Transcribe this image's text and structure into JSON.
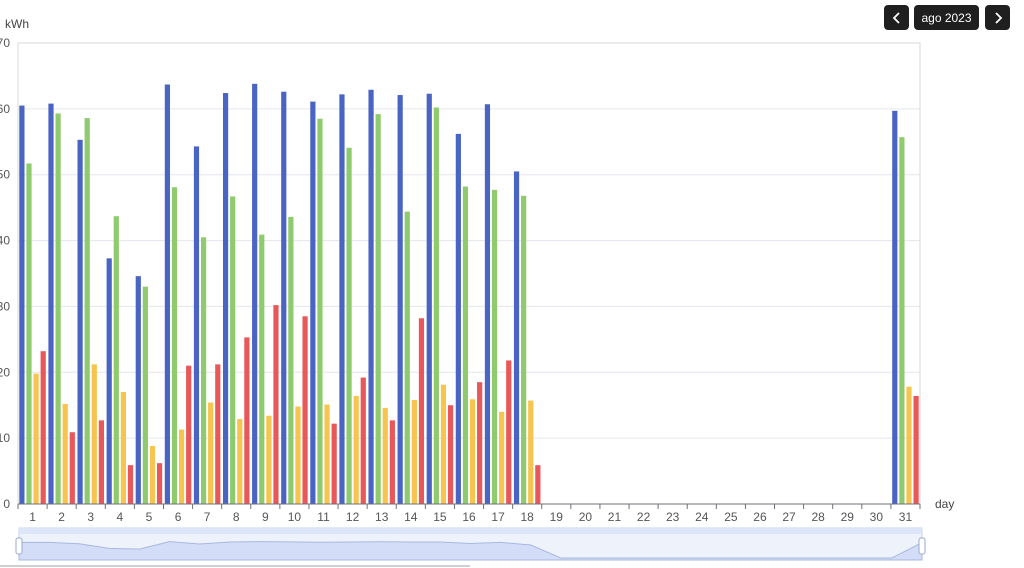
{
  "nav": {
    "prev_icon": "chevron-left-icon",
    "next_icon": "chevron-right-icon",
    "month_label": "ago 2023"
  },
  "colors": {
    "background": "#ffffff",
    "button_bg": "#1f1f1f",
    "grid": "#e3e6ee",
    "axis": "#6e7079",
    "series": [
      "#4a64c4",
      "#8fcb6e",
      "#f6c44f",
      "#e8585a"
    ],
    "zoom_fill": "#d3ddf7",
    "zoom_line": "#a8b8e0"
  },
  "chart_data": {
    "type": "bar",
    "ylabel": "kWh",
    "xlabel": "day",
    "ylim": [
      0,
      70
    ],
    "yticks": [
      0,
      10,
      20,
      30,
      40,
      50,
      60,
      70
    ],
    "grid": true,
    "categories": [
      "1",
      "2",
      "3",
      "4",
      "5",
      "6",
      "7",
      "8",
      "9",
      "10",
      "11",
      "12",
      "13",
      "14",
      "15",
      "16",
      "17",
      "18",
      "19",
      "20",
      "21",
      "22",
      "23",
      "24",
      "25",
      "26",
      "27",
      "28",
      "29",
      "30",
      "31"
    ],
    "series": [
      {
        "values": [
          60.5,
          60.8,
          55.3,
          37.3,
          34.6,
          63.7,
          54.3,
          62.4,
          63.8,
          62.6,
          61.1,
          62.2,
          62.9,
          62.1,
          62.3,
          56.2,
          60.7,
          50.5,
          null,
          null,
          null,
          null,
          null,
          null,
          null,
          null,
          null,
          null,
          null,
          null,
          59.7
        ]
      },
      {
        "values": [
          51.7,
          59.3,
          58.6,
          43.7,
          33.0,
          48.1,
          40.5,
          46.7,
          40.9,
          43.6,
          58.5,
          54.1,
          59.2,
          44.4,
          60.2,
          48.2,
          47.7,
          46.8,
          null,
          null,
          null,
          null,
          null,
          null,
          null,
          null,
          null,
          null,
          null,
          null,
          55.7
        ]
      },
      {
        "values": [
          19.8,
          15.2,
          21.2,
          17.0,
          8.8,
          11.3,
          15.4,
          12.9,
          13.4,
          14.8,
          15.1,
          16.4,
          14.6,
          15.8,
          18.1,
          15.9,
          14.0,
          15.7,
          null,
          null,
          null,
          null,
          null,
          null,
          null,
          null,
          null,
          null,
          null,
          null,
          17.8
        ]
      },
      {
        "values": [
          23.2,
          10.9,
          12.7,
          5.9,
          6.2,
          21.0,
          21.2,
          25.3,
          30.2,
          28.5,
          12.2,
          19.2,
          12.7,
          28.2,
          15.0,
          18.5,
          21.8,
          5.9,
          null,
          null,
          null,
          null,
          null,
          null,
          null,
          null,
          null,
          null,
          null,
          null,
          16.4
        ]
      }
    ]
  }
}
